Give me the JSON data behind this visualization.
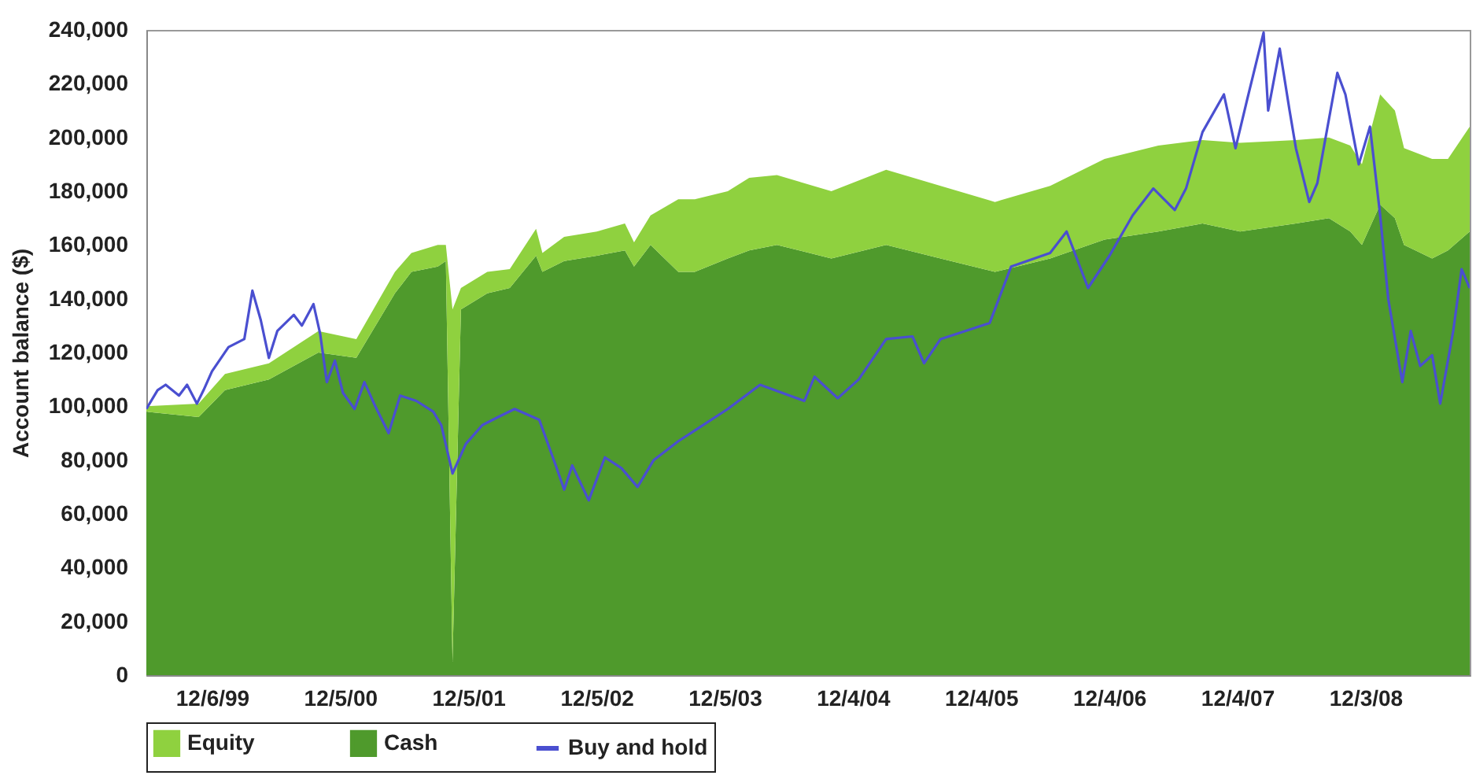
{
  "chart_data": {
    "type": "area",
    "stacked": true,
    "ylabel": "Account balance ($)",
    "legend": "bottom",
    "x": [
      "1999-06-02",
      "1999-10-29",
      "2000-01-12",
      "2000-05-16",
      "2000-10-04",
      "2001-01-20",
      "2001-05-10",
      "2001-06-26",
      "2001-09-09",
      "2001-10-02",
      "2001-10-21",
      "2001-11-14",
      "2002-01-28",
      "2002-04-02",
      "2002-06-16",
      "2002-07-04",
      "2002-09-04",
      "2002-12-06",
      "2003-02-24",
      "2003-03-22",
      "2003-05-08",
      "2003-07-26",
      "2003-09-11",
      "2003-12-14",
      "2004-02-13",
      "2004-05-02",
      "2004-10-04",
      "2005-03-09",
      "2005-08-11",
      "2006-01-13",
      "2006-06-19",
      "2006-11-21",
      "2007-04-23",
      "2007-08-27",
      "2007-12-12",
      "2008-05-19",
      "2008-08-21",
      "2008-10-21",
      "2008-11-23",
      "2009-01-14",
      "2009-02-25",
      "2009-03-23",
      "2009-06-11",
      "2009-07-26",
      "2009-09-26"
    ],
    "series": [
      {
        "name": "Cash",
        "type": "area",
        "color": "#4f9a2c",
        "values": [
          98000,
          96000,
          106000,
          110000,
          120000,
          118000,
          142000,
          150000,
          152000,
          154000,
          5000,
          136000,
          142000,
          144000,
          156000,
          150000,
          154000,
          156000,
          158000,
          152000,
          160000,
          150000,
          150000,
          155000,
          158000,
          160000,
          155000,
          160000,
          155000,
          150000,
          155000,
          162000,
          165000,
          168000,
          165000,
          168000,
          170000,
          165000,
          160000,
          175000,
          170000,
          160000,
          155000,
          158000,
          165000
        ]
      },
      {
        "name": "Equity",
        "type": "area",
        "color": "#8fd13f",
        "values": [
          2000,
          5000,
          6000,
          6000,
          8000,
          7000,
          8000,
          7000,
          8000,
          6000,
          131000,
          8000,
          8000,
          7000,
          10000,
          7000,
          9000,
          9000,
          10000,
          9000,
          11000,
          27000,
          27000,
          25000,
          27000,
          26000,
          25000,
          28000,
          27000,
          26000,
          27000,
          30000,
          32000,
          31000,
          33000,
          31000,
          30000,
          32000,
          30000,
          41000,
          40000,
          36000,
          37000,
          34000,
          39000
        ]
      },
      {
        "name": "Buy and hold",
        "type": "line",
        "color": "#4a4fd0",
        "x": [
          "1999-06-02",
          "1999-07-04",
          "1999-07-27",
          "1999-09-03",
          "1999-09-26",
          "1999-10-24",
          "1999-11-12",
          "1999-12-06",
          "2000-01-22",
          "2000-03-07",
          "2000-03-30",
          "2000-04-23",
          "2000-05-16",
          "2000-06-09",
          "2000-07-26",
          "2000-08-18",
          "2000-09-20",
          "2000-10-09",
          "2000-10-28",
          "2000-11-20",
          "2000-12-13",
          "2001-01-15",
          "2001-02-12",
          "2001-03-15",
          "2001-04-22",
          "2001-05-25",
          "2001-07-10",
          "2001-08-27",
          "2001-09-19",
          "2001-10-21",
          "2001-11-28",
          "2002-01-14",
          "2002-02-28",
          "2002-04-16",
          "2002-06-25",
          "2002-08-11",
          "2002-09-04",
          "2002-09-27",
          "2002-11-13",
          "2002-12-29",
          "2003-02-14",
          "2003-04-01",
          "2003-05-17",
          "2003-07-26",
          "2003-09-11",
          "2003-12-14",
          "2004-03-15",
          "2004-07-19",
          "2004-08-17",
          "2004-10-22",
          "2004-12-21",
          "2005-03-09",
          "2005-05-23",
          "2005-06-25",
          "2005-08-11",
          "2005-12-29",
          "2006-02-28",
          "2006-06-19",
          "2006-08-05",
          "2006-10-05",
          "2006-12-05",
          "2007-02-09",
          "2007-04-09",
          "2007-06-09",
          "2007-07-11",
          "2007-08-27",
          "2007-10-27",
          "2007-11-29",
          "2008-01-01",
          "2008-02-17",
          "2008-03-01",
          "2008-04-03",
          "2008-05-01",
          "2008-05-19",
          "2008-06-26",
          "2008-07-19",
          "2008-09-14",
          "2008-10-07",
          "2008-11-14",
          "2008-12-16",
          "2009-01-14",
          "2009-02-06",
          "2009-03-18",
          "2009-04-11",
          "2009-05-08",
          "2009-06-11",
          "2009-07-04",
          "2009-08-10",
          "2009-09-03",
          "2009-09-26"
        ],
        "values": [
          99000,
          106000,
          108000,
          104000,
          108000,
          101000,
          106000,
          113000,
          122000,
          125000,
          143000,
          132000,
          118000,
          128000,
          134000,
          130000,
          138000,
          127000,
          109000,
          117000,
          105000,
          99000,
          109000,
          100000,
          90000,
          104000,
          102000,
          98000,
          93000,
          75000,
          86000,
          93000,
          96000,
          99000,
          95000,
          78000,
          69000,
          78000,
          65000,
          81000,
          77000,
          70000,
          80000,
          87000,
          91000,
          99000,
          108000,
          102000,
          111000,
          103000,
          110000,
          125000,
          126000,
          116000,
          125000,
          131000,
          152000,
          157000,
          165000,
          144000,
          156000,
          171000,
          181000,
          173000,
          181000,
          202000,
          216000,
          196000,
          214000,
          239000,
          210000,
          233000,
          210000,
          196000,
          176000,
          183000,
          224000,
          216000,
          190000,
          204000,
          171000,
          140000,
          109000,
          128000,
          115000,
          119000,
          101000,
          128000,
          151000,
          144000
        ]
      }
    ],
    "xlim": [
      "1999-06-02",
      "2009-09-26"
    ],
    "xticks": [
      {
        "value": "1999-12-06",
        "label": "12/6/99"
      },
      {
        "value": "2000-12-05",
        "label": "12/5/00"
      },
      {
        "value": "2001-12-05",
        "label": "12/5/01"
      },
      {
        "value": "2002-12-05",
        "label": "12/5/02"
      },
      {
        "value": "2003-12-05",
        "label": "12/5/03"
      },
      {
        "value": "2004-12-04",
        "label": "12/4/04"
      },
      {
        "value": "2005-12-04",
        "label": "12/4/05"
      },
      {
        "value": "2006-12-04",
        "label": "12/4/06"
      },
      {
        "value": "2007-12-04",
        "label": "12/4/07"
      },
      {
        "value": "2008-12-03",
        "label": "12/3/08"
      }
    ],
    "ylim": [
      0,
      240000
    ],
    "yticks": [
      0,
      {
        "value": 20000,
        "label": "20,000"
      },
      {
        "value": 40000,
        "label": "40,000"
      },
      {
        "value": 60000,
        "label": "60,000"
      },
      {
        "value": 80000,
        "label": "80,000"
      },
      {
        "value": 100000,
        "label": "100,000"
      },
      {
        "value": 120000,
        "label": "120,000"
      },
      {
        "value": 140000,
        "label": "140,000"
      },
      {
        "value": 160000,
        "label": "160,000"
      },
      {
        "value": 180000,
        "label": "180,000"
      },
      {
        "value": 200000,
        "label": "200,000"
      },
      {
        "value": 220000,
        "label": "220,000"
      },
      {
        "value": 240000,
        "label": "240,000"
      }
    ]
  }
}
